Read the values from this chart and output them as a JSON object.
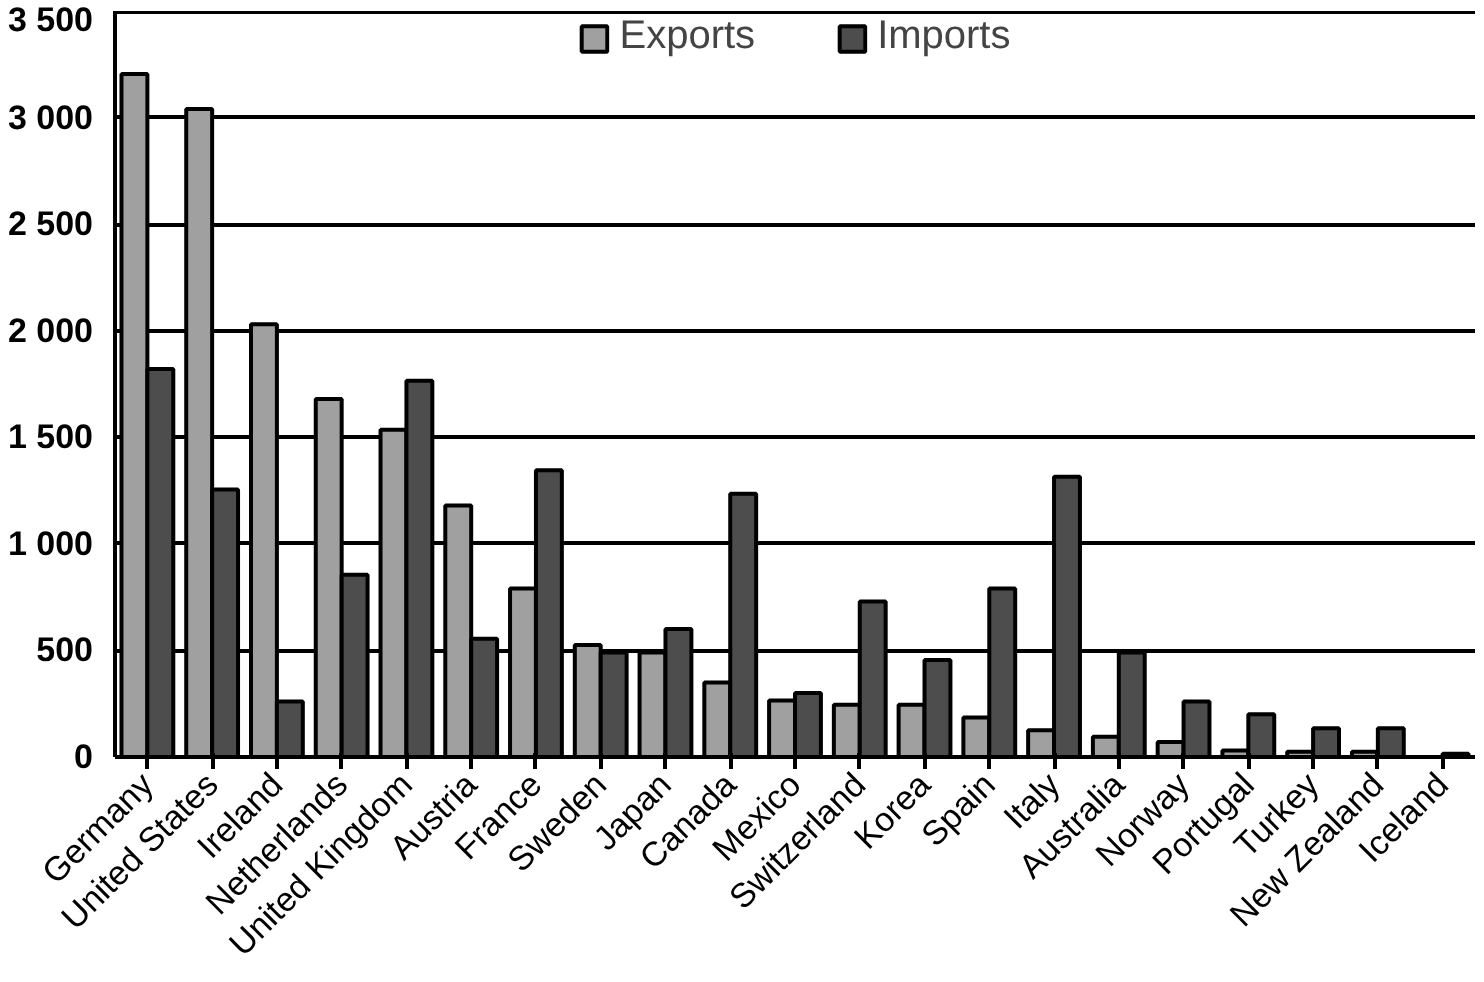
{
  "chart_data": {
    "type": "bar",
    "categories": [
      "Germany",
      "United States",
      "Ireland",
      "Netherlands",
      "United Kingdom",
      "Austria",
      "France",
      "Sweden",
      "Japan",
      "Canada",
      "Mexico",
      "Switzerland",
      "Korea",
      "Spain",
      "Italy",
      "Australia",
      "Norway",
      "Portugal",
      "Turkey",
      "New Zealand",
      "Iceland"
    ],
    "series": [
      {
        "name": "Exports",
        "color": "#a0a0a0",
        "values": [
          3205,
          3040,
          2030,
          1680,
          1535,
          1180,
          790,
          525,
          490,
          350,
          265,
          245,
          245,
          185,
          125,
          95,
          70,
          30,
          25,
          25,
          null
        ]
      },
      {
        "name": "Imports",
        "color": "#4d4d4d",
        "values": [
          1820,
          1255,
          260,
          855,
          1765,
          555,
          1345,
          490,
          600,
          1235,
          300,
          730,
          455,
          790,
          1315,
          490,
          260,
          200,
          135,
          135,
          15
        ]
      }
    ],
    "ylim": [
      0,
      3500
    ],
    "yticks": [
      {
        "value": 0,
        "label": "0"
      },
      {
        "value": 500,
        "label": "500"
      },
      {
        "value": 1000,
        "label": "1 000"
      },
      {
        "value": 1500,
        "label": "1 500"
      },
      {
        "value": 2000,
        "label": "2 000"
      },
      {
        "value": 2500,
        "label": "2 500"
      },
      {
        "value": 3000,
        "label": "3 000"
      },
      {
        "value": 3500,
        "label": "3 500"
      }
    ],
    "grid": "y",
    "legend": "top"
  }
}
